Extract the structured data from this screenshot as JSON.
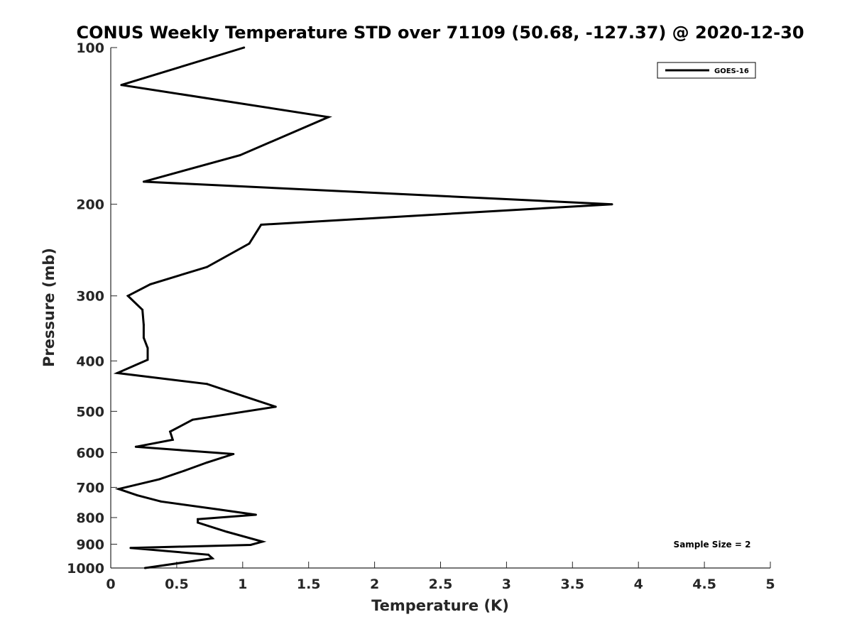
{
  "chart_data": {
    "type": "line",
    "title": "CONUS Weekly Temperature STD over 71109 (50.68, -127.37) @ 2020-12-30",
    "xlabel": "Temperature (K)",
    "ylabel": "Pressure (mb)",
    "xlim": [
      0,
      5
    ],
    "ylim": [
      100,
      1000
    ],
    "y_scale": "log",
    "y_reversed": true,
    "x_ticks": [
      "0",
      "0.5",
      "1",
      "1.5",
      "2",
      "2.5",
      "3",
      "3.5",
      "4",
      "4.5",
      "5"
    ],
    "y_ticks": [
      "100",
      "200",
      "300",
      "400",
      "500",
      "600",
      "700",
      "800",
      "900",
      "1000"
    ],
    "legend_position": "top-right",
    "grid": false,
    "annotation": "Sample Size = 2",
    "series": [
      {
        "name": "GOES-16",
        "color": "#000000",
        "points": [
          [
            1.01,
            100
          ],
          [
            0.08,
            118
          ],
          [
            1.65,
            136
          ],
          [
            0.98,
            161
          ],
          [
            0.25,
            181
          ],
          [
            3.8,
            200
          ],
          [
            1.14,
            219
          ],
          [
            1.05,
            238
          ],
          [
            0.73,
            264
          ],
          [
            0.3,
            285
          ],
          [
            0.13,
            300
          ],
          [
            0.24,
            319
          ],
          [
            0.25,
            341
          ],
          [
            0.25,
            361
          ],
          [
            0.28,
            378
          ],
          [
            0.28,
            398
          ],
          [
            0.05,
            422
          ],
          [
            0.73,
            443
          ],
          [
            1.0,
            467
          ],
          [
            1.25,
            490
          ],
          [
            0.62,
            519
          ],
          [
            0.45,
            547
          ],
          [
            0.47,
            567
          ],
          [
            0.19,
            585
          ],
          [
            0.93,
            604
          ],
          [
            0.73,
            627
          ],
          [
            0.56,
            650
          ],
          [
            0.37,
            675
          ],
          [
            0.06,
            705
          ],
          [
            0.2,
            725
          ],
          [
            0.38,
            745
          ],
          [
            0.82,
            772
          ],
          [
            1.1,
            790
          ],
          [
            0.66,
            806
          ],
          [
            0.66,
            818
          ],
          [
            0.88,
            852
          ],
          [
            1.15,
            890
          ],
          [
            1.06,
            903
          ],
          [
            0.15,
            915
          ],
          [
            0.74,
            943
          ],
          [
            0.77,
            958
          ],
          [
            0.26,
            1000
          ]
        ]
      }
    ]
  }
}
